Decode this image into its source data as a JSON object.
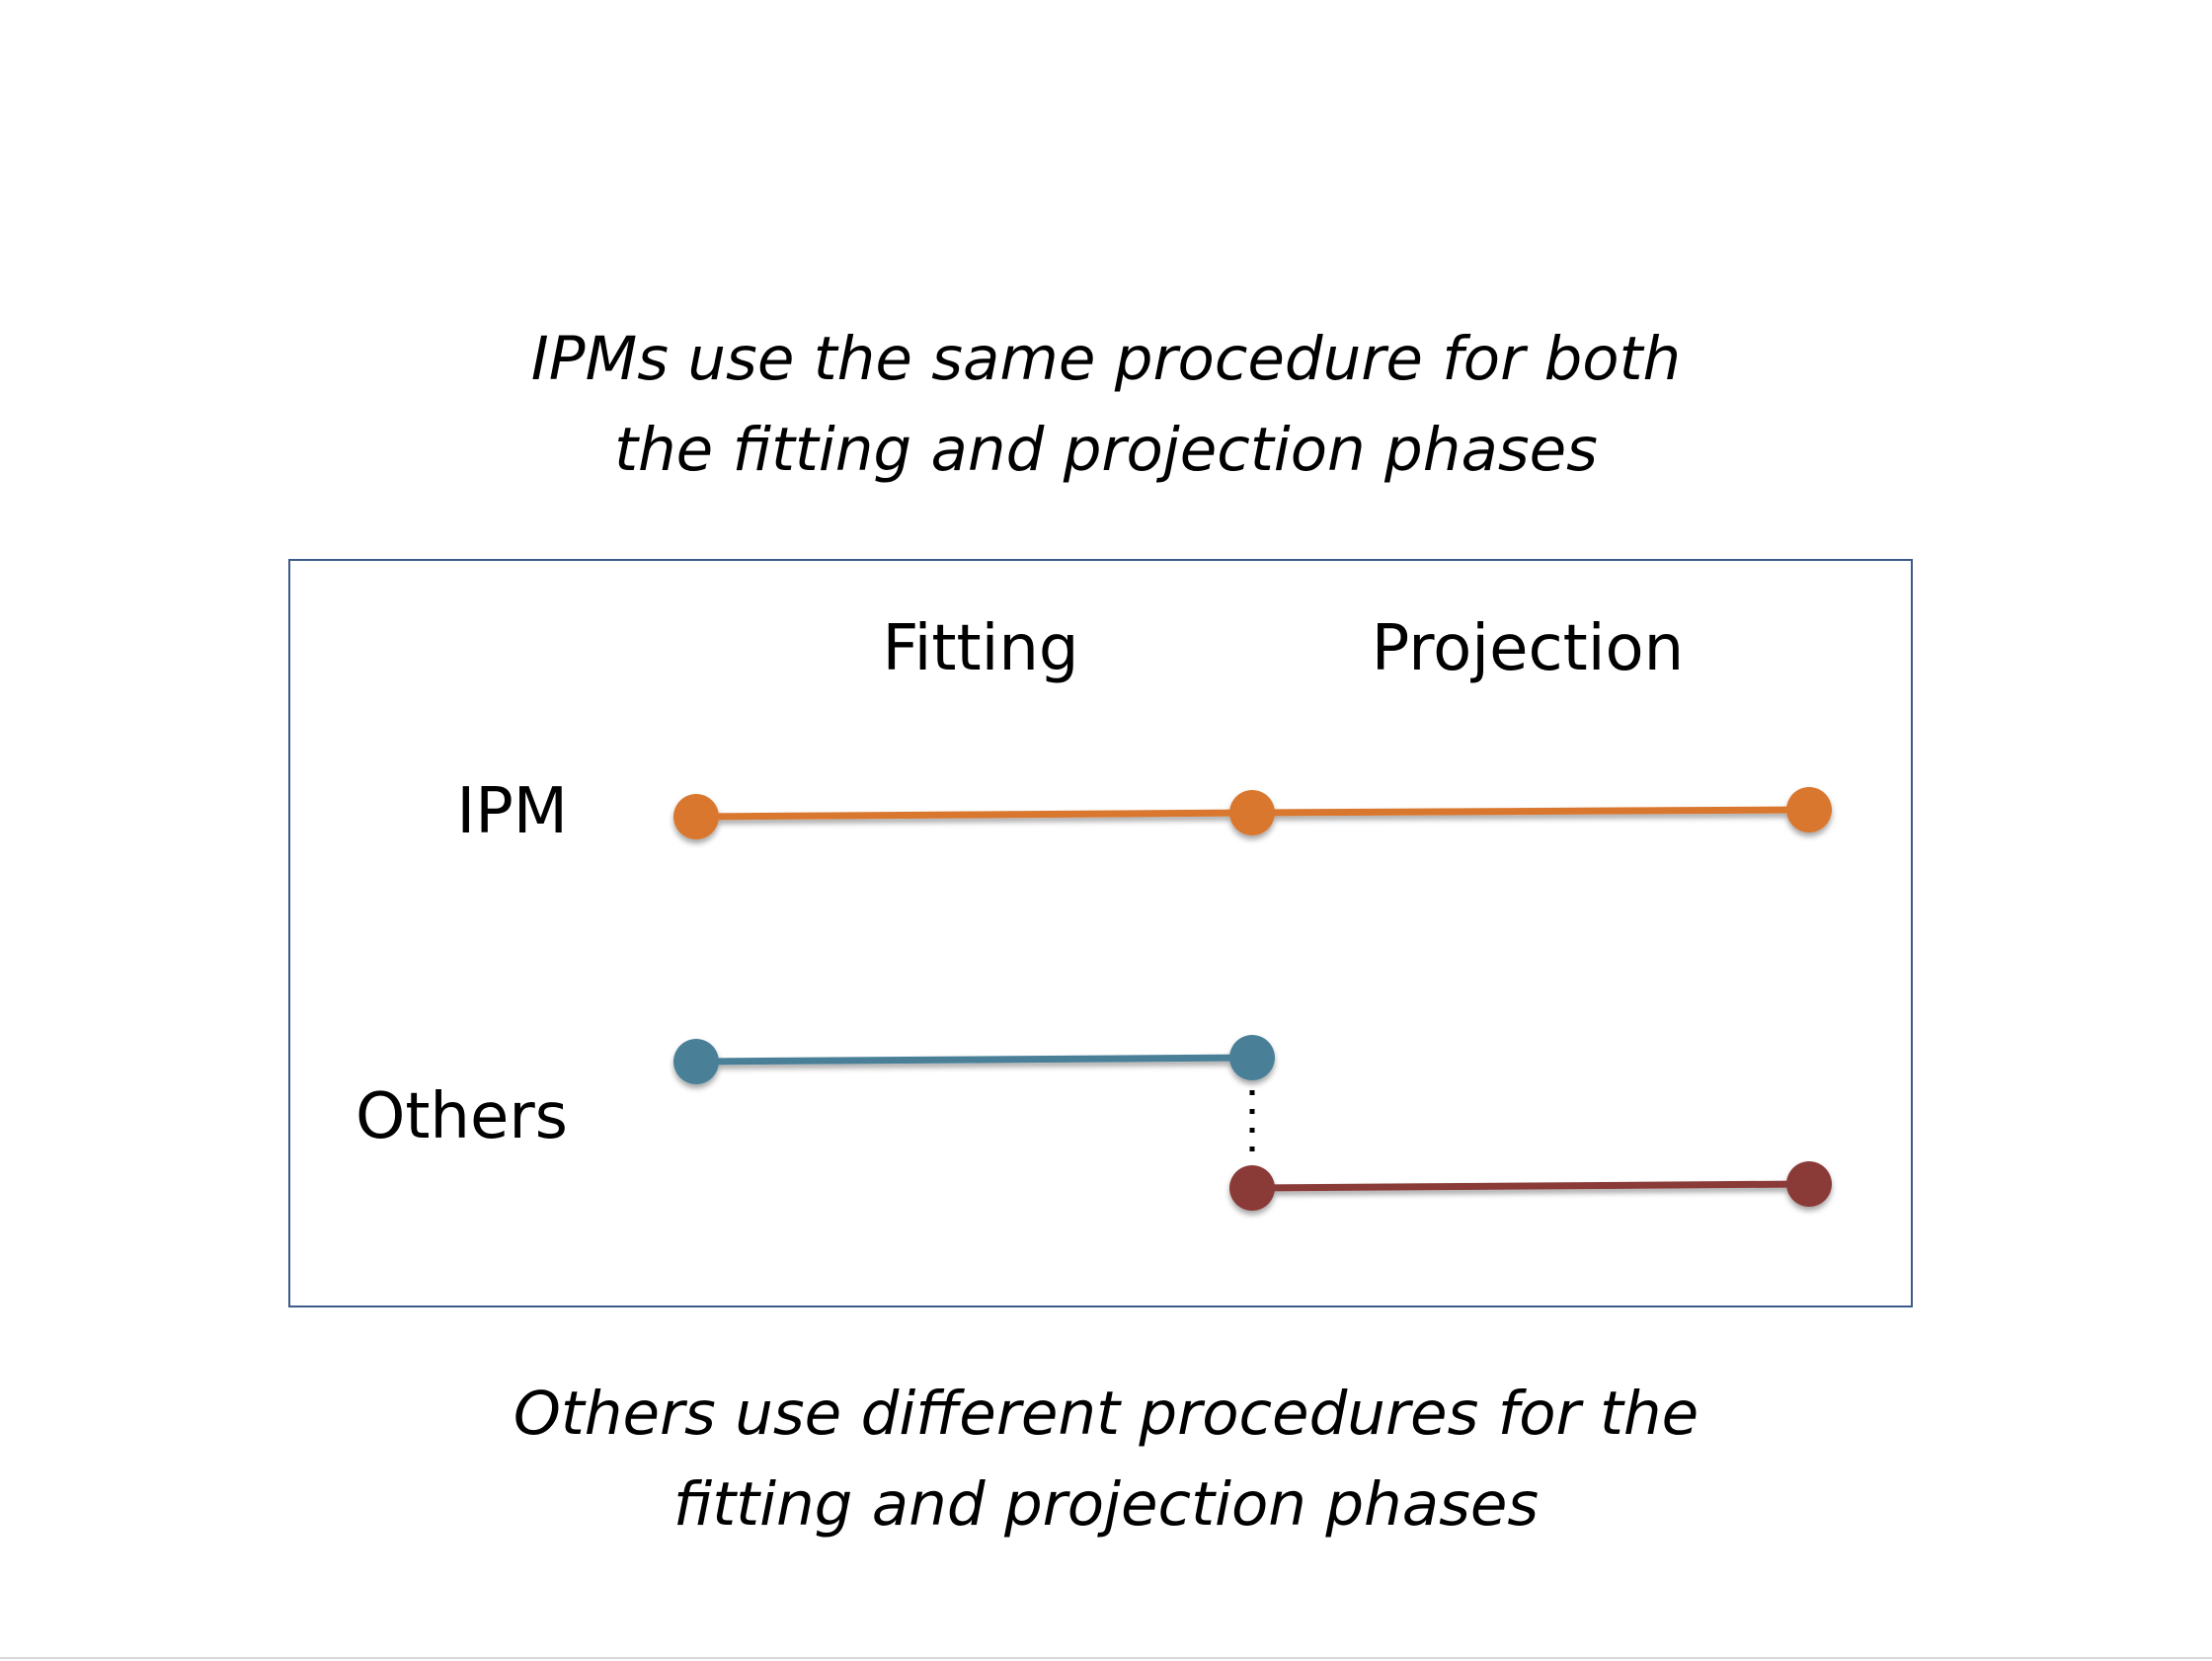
{
  "captions": {
    "top_line1": "IPMs use the same procedure for both",
    "top_line2": "the fitting and projection phases",
    "bottom_line1": "Others use different procedures for the",
    "bottom_line2": "fitting and projection phases"
  },
  "columns": {
    "fitting": "Fitting",
    "projection": "Projection"
  },
  "rows": {
    "ipm": "IPM",
    "others": "Others"
  },
  "colors": {
    "ipm": "#D9772F",
    "others_fitting": "#4A8098",
    "others_projection": "#8A3A38",
    "frame": "#3D5A8A"
  }
}
